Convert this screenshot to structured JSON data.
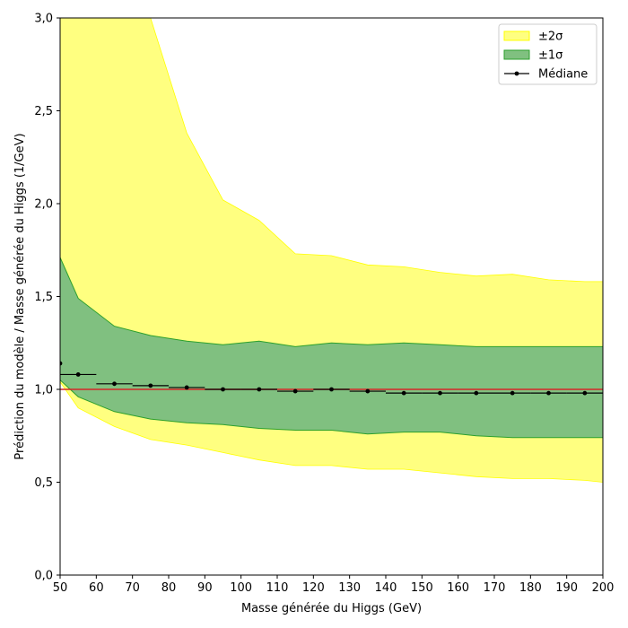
{
  "chart_data": {
    "type": "area",
    "xlabel": "Masse générée du Higgs (GeV)",
    "ylabel": "Prédiction du modèle / Masse générée du Higgs (1/GeV)",
    "xlim": [
      50,
      200
    ],
    "ylim": [
      0,
      3
    ],
    "x_ticks": [
      50,
      60,
      70,
      80,
      90,
      100,
      110,
      120,
      130,
      140,
      150,
      160,
      170,
      180,
      190,
      200
    ],
    "y_ticks": [
      0,
      0.5,
      1.0,
      1.5,
      2.0,
      2.5,
      3.0
    ],
    "x_tick_labels": [
      "50",
      "60",
      "70",
      "80",
      "90",
      "100",
      "110",
      "120",
      "130",
      "140",
      "150",
      "160",
      "170",
      "180",
      "190",
      "200"
    ],
    "y_tick_labels": [
      "0,0",
      "0,5",
      "1,0",
      "1,5",
      "2,0",
      "2,5",
      "3,0"
    ],
    "grid": false,
    "legend_position": "top-right",
    "legend": [
      {
        "label": "±2σ",
        "color": "#ffff80",
        "edge": "#ffff00",
        "kind": "band"
      },
      {
        "label": "±1σ",
        "color": "#80c080",
        "edge": "#2ca02c",
        "kind": "band"
      },
      {
        "label": "Médiane",
        "color": "#000000",
        "kind": "line-marker"
      }
    ],
    "reference_line": {
      "y": 1.0,
      "color": "#d62728"
    },
    "band_x": [
      50,
      55,
      65,
      75,
      85,
      95,
      105,
      115,
      125,
      135,
      145,
      155,
      165,
      175,
      185,
      195,
      200
    ],
    "band_2sigma_upper": [
      3.0,
      3.0,
      3.0,
      3.0,
      2.38,
      2.02,
      1.91,
      1.73,
      1.72,
      1.67,
      1.66,
      1.63,
      1.61,
      1.62,
      1.59,
      1.58,
      1.58
    ],
    "band_2sigma_lower": [
      1.04,
      0.9,
      0.8,
      0.73,
      0.7,
      0.66,
      0.62,
      0.59,
      0.59,
      0.57,
      0.57,
      0.55,
      0.53,
      0.52,
      0.52,
      0.51,
      0.5
    ],
    "band_1sigma_upper": [
      1.71,
      1.49,
      1.34,
      1.29,
      1.26,
      1.24,
      1.26,
      1.23,
      1.25,
      1.24,
      1.25,
      1.24,
      1.23,
      1.23,
      1.23,
      1.23,
      1.23
    ],
    "band_1sigma_lower": [
      1.05,
      0.96,
      0.88,
      0.84,
      0.82,
      0.81,
      0.79,
      0.78,
      0.78,
      0.76,
      0.77,
      0.77,
      0.75,
      0.74,
      0.74,
      0.74,
      0.74
    ],
    "median": {
      "name": "Médiane",
      "x": [
        50,
        55,
        65,
        75,
        85,
        95,
        105,
        115,
        125,
        135,
        145,
        155,
        165,
        175,
        185,
        195
      ],
      "y": [
        1.14,
        1.08,
        1.03,
        1.02,
        1.01,
        1.0,
        1.0,
        0.99,
        1.0,
        0.99,
        0.98,
        0.98,
        0.98,
        0.98,
        0.98,
        0.98
      ],
      "xerr": [
        0,
        5,
        5,
        5,
        5,
        5,
        5,
        5,
        5,
        5,
        5,
        5,
        5,
        5,
        5,
        5
      ]
    }
  }
}
